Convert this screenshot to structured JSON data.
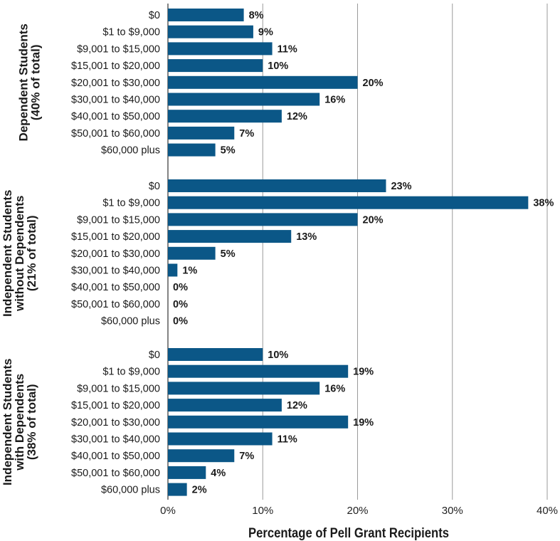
{
  "chart_data": {
    "type": "bar",
    "orientation": "horizontal",
    "xlabel": "Percentage of Pell Grant Recipients",
    "xlim": [
      0,
      40
    ],
    "x_ticks": [
      "0%",
      "10%",
      "20%",
      "30%",
      "40%"
    ],
    "grid": true,
    "bar_color": "#0b5787",
    "groups": [
      {
        "title_lines": [
          "Dependent Students",
          "(40% of total)"
        ],
        "categories": [
          "$0",
          "$1 to $9,000",
          "$9,001 to $15,000",
          "$15,001 to $20,000",
          "$20,001 to $30,000",
          "$30,001 to $40,000",
          "$40,001 to $50,000",
          "$50,001 to $60,000",
          "$60,000 plus"
        ],
        "values": [
          8,
          9,
          11,
          10,
          20,
          16,
          12,
          7,
          5
        ],
        "labels": [
          "8%",
          "9%",
          "11%",
          "10%",
          "20%",
          "16%",
          "12%",
          "7%",
          "5%"
        ]
      },
      {
        "title_lines": [
          "Independent Students",
          "without Dependents",
          "(21% of total)"
        ],
        "categories": [
          "$0",
          "$1 to $9,000",
          "$9,001 to $15,000",
          "$15,001 to $20,000",
          "$20,001 to $30,000",
          "$30,001 to $40,000",
          "$40,001 to $50,000",
          "$50,001 to $60,000",
          "$60,000 plus"
        ],
        "values": [
          23,
          38,
          20,
          13,
          5,
          1,
          0,
          0,
          0
        ],
        "labels": [
          "23%",
          "38%",
          "20%",
          "13%",
          "5%",
          "1%",
          "0%",
          "0%",
          "0%"
        ]
      },
      {
        "title_lines": [
          "Independent Students",
          "with Dependents",
          "(38% of total)"
        ],
        "categories": [
          "$0",
          "$1 to $9,000",
          "$9,001 to $15,000",
          "$15,001 to $20,000",
          "$20,001 to $30,000",
          "$30,001 to $40,000",
          "$40,001 to $50,000",
          "$50,001 to $60,000",
          "$60,000 plus"
        ],
        "values": [
          10,
          19,
          16,
          12,
          19,
          11,
          7,
          4,
          2
        ],
        "labels": [
          "10%",
          "19%",
          "16%",
          "12%",
          "19%",
          "11%",
          "7%",
          "4%",
          "2%"
        ]
      }
    ]
  }
}
